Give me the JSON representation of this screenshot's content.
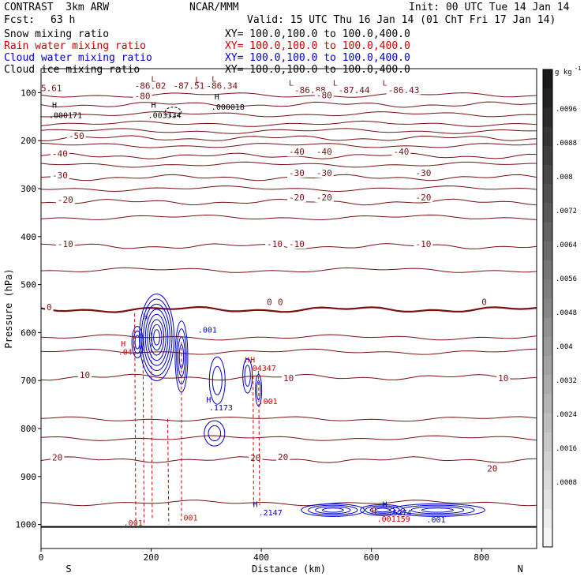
{
  "header": {
    "title": "CONTRAST  3km ARW",
    "center": "NCAR/MMM",
    "init": "Init: 00 UTC Tue 14 Jan 14",
    "fcst_label": "Fcst:",
    "fcst_value": "63 h",
    "valid": "Valid: 15 UTC Thu 16 Jan 14 (01 ChT Fri 17 Jan 14)"
  },
  "fields": [
    {
      "name": "Snow mixing ratio",
      "xy": "XY= 100.0,100.0 to 100.0,400.0",
      "color": "#000000"
    },
    {
      "name": "Rain water mixing ratio",
      "xy": "XY= 100.0,100.0 to 100.0,400.0",
      "color": "#cc0000"
    },
    {
      "name": "Cloud water mixing ratio",
      "xy": "XY= 100.0,100.0 to 100.0,400.0",
      "color": "#0000cc"
    },
    {
      "name": "Cloud ice mixing ratio",
      "xy": "XY= 100.0,100.0 to 100.0,400.0",
      "color": "#000000"
    }
  ],
  "colorbar": {
    "unit": "g kg",
    "unit_exp": "-1",
    "ticks": [
      ".0096",
      ".0088",
      ".008",
      ".0072",
      ".0064",
      ".0056",
      ".0048",
      ".004",
      ".0032",
      ".0024",
      ".0016",
      ".0008"
    ]
  },
  "chart_data": {
    "type": "contour",
    "xlabel": "Distance (km)",
    "ylabel": "Pressure (hPa)",
    "xlim": [
      0,
      900
    ],
    "ylim": [
      1050,
      50
    ],
    "xticks": [
      0,
      200,
      400,
      600,
      800
    ],
    "yticks": [
      100,
      200,
      300,
      400,
      500,
      600,
      700,
      800,
      900,
      1000
    ],
    "x_end_labels": {
      "left": "S",
      "right": "N"
    },
    "temperature_isotherms": [
      {
        "label": "-80",
        "p": 125
      },
      {
        "label": "-50",
        "p": 195
      },
      {
        "label": "-40",
        "p": 232
      },
      {
        "label": "-30",
        "p": 277
      },
      {
        "label": "-20",
        "p": 328
      },
      {
        "label": "-10",
        "p": 420
      },
      {
        "label": "0",
        "p": 552
      },
      {
        "label": "10",
        "p": 693
      },
      {
        "label": "20",
        "p": 865
      }
    ],
    "temperature_labels": [
      {
        "text": "5.61",
        "x": 0,
        "p": 95
      },
      {
        "text": "-86.02",
        "x": 170,
        "p": 90
      },
      {
        "text": "-87.51",
        "x": 240,
        "p": 90
      },
      {
        "text": "-86.34",
        "x": 300,
        "p": 90
      },
      {
        "text": "-86.88",
        "x": 460,
        "p": 99
      },
      {
        "text": "-87.44",
        "x": 540,
        "p": 99
      },
      {
        "text": "-86.43",
        "x": 630,
        "p": 99
      },
      {
        "text": "-80",
        "x": 170,
        "p": 112
      },
      {
        "text": "-80",
        "x": 500,
        "p": 110
      },
      {
        "text": "-50",
        "x": 50,
        "p": 195
      },
      {
        "text": "-40",
        "x": 20,
        "p": 232
      },
      {
        "text": "-40",
        "x": 450,
        "p": 228
      },
      {
        "text": "-40",
        "x": 500,
        "p": 228
      },
      {
        "text": "-40",
        "x": 640,
        "p": 228
      },
      {
        "text": "-30",
        "x": 20,
        "p": 277
      },
      {
        "text": "-30",
        "x": 450,
        "p": 272
      },
      {
        "text": "-30",
        "x": 500,
        "p": 272
      },
      {
        "text": "-30",
        "x": 680,
        "p": 272
      },
      {
        "text": "-20",
        "x": 30,
        "p": 328
      },
      {
        "text": "-20",
        "x": 450,
        "p": 323
      },
      {
        "text": "-20",
        "x": 500,
        "p": 323
      },
      {
        "text": "-20",
        "x": 680,
        "p": 323
      },
      {
        "text": "-10",
        "x": 30,
        "p": 420
      },
      {
        "text": "-10",
        "x": 410,
        "p": 420
      },
      {
        "text": "-10",
        "x": 450,
        "p": 420
      },
      {
        "text": "-10",
        "x": 680,
        "p": 420
      },
      {
        "text": "0",
        "x": 10,
        "p": 552
      },
      {
        "text": "0",
        "x": 410,
        "p": 541
      },
      {
        "text": "0",
        "x": 430,
        "p": 541
      },
      {
        "text": "0",
        "x": 800,
        "p": 541
      },
      {
        "text": "10",
        "x": 70,
        "p": 693
      },
      {
        "text": "10",
        "x": 440,
        "p": 700
      },
      {
        "text": "10",
        "x": 830,
        "p": 700
      },
      {
        "text": "20",
        "x": 20,
        "p": 865
      },
      {
        "text": "20",
        "x": 380,
        "p": 866
      },
      {
        "text": "20",
        "x": 430,
        "p": 864
      },
      {
        "text": "20",
        "x": 810,
        "p": 888
      }
    ],
    "snow_highs": [
      {
        "text": ".000171",
        "x": 20,
        "p": 148
      },
      {
        "text": ".003334",
        "x": 200,
        "p": 148
      },
      {
        "text": ".000018",
        "x": 315,
        "p": 131
      }
    ],
    "rain_labels": [
      {
        "text": "H",
        "x": 145,
        "p": 629
      },
      {
        "text": ".04",
        "x": 140,
        "p": 646
      },
      {
        "text": "H",
        "x": 370,
        "p": 663
      },
      {
        "text": "H",
        "x": 380,
        "p": 663
      },
      {
        "text": ".04347",
        "x": 375,
        "p": 680
      },
      {
        "text": ".001",
        "x": 395,
        "p": 749
      },
      {
        "text": ".001",
        "x": 150,
        "p": 1002
      },
      {
        "text": ".001",
        "x": 250,
        "p": 992
      },
      {
        "text": "H",
        "x": 600,
        "p": 978
      },
      {
        "text": ".001159",
        "x": 610,
        "p": 994
      }
    ],
    "cloud_water_labels": [
      {
        "text": "H",
        "x": 185,
        "p": 572
      },
      {
        "text": ".001",
        "x": 285,
        "p": 600
      },
      {
        "text": "H",
        "x": 300,
        "p": 746
      },
      {
        "text": ".1173",
        "x": 305,
        "p": 762
      },
      {
        "text": "H",
        "x": 385,
        "p": 964
      },
      {
        "text": ".2147",
        "x": 395,
        "p": 981
      },
      {
        "text": "H",
        "x": 620,
        "p": 964
      },
      {
        "text": ".5274",
        "x": 630,
        "p": 981
      },
      {
        "text": ".001",
        "x": 700,
        "p": 996
      }
    ],
    "ice_lows": [
      {
        "text": "L",
        "x": 200,
        "p": 77
      },
      {
        "text": "L",
        "x": 280,
        "p": 79
      },
      {
        "text": "L",
        "x": 310,
        "p": 77
      },
      {
        "text": "L",
        "x": 450,
        "p": 85
      },
      {
        "text": "L",
        "x": 530,
        "p": 85
      },
      {
        "text": "L",
        "x": 620,
        "p": 85
      }
    ]
  }
}
